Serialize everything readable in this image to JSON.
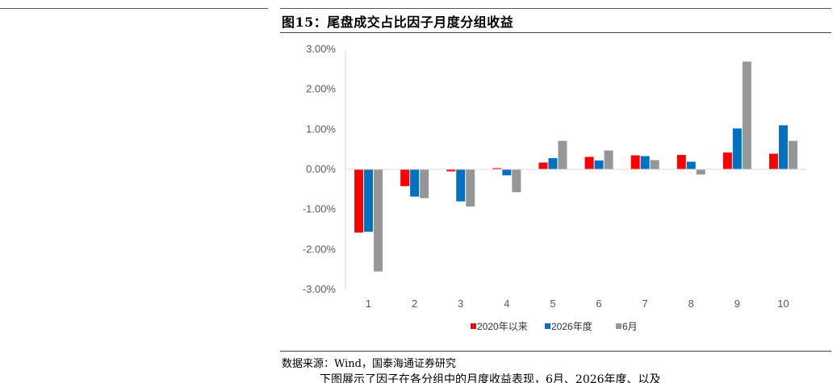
{
  "figure": {
    "title": "图15：尾盘成交占比因子月度分组收益",
    "source": "数据来源：Wind，国泰海通证券研究",
    "body_text": "下图展示了因子在各分组中的月度收益表现，6月、2026年度、以及"
  },
  "colors": {
    "series1": "#ff0000",
    "series2": "#0070c0",
    "series3": "#969696",
    "axis": "#d9d9d9"
  },
  "chart_data": {
    "type": "bar",
    "categories": [
      "1",
      "2",
      "3",
      "4",
      "5",
      "6",
      "7",
      "8",
      "9",
      "10"
    ],
    "series": [
      {
        "name": "2020年以来",
        "values": [
          -1.58,
          -0.42,
          -0.05,
          0.03,
          0.17,
          0.31,
          0.35,
          0.36,
          0.42,
          0.39
        ]
      },
      {
        "name": "2026年度",
        "values": [
          -1.56,
          -0.68,
          -0.8,
          -0.15,
          0.28,
          0.22,
          0.33,
          0.19,
          1.02,
          1.1
        ]
      },
      {
        "name": "6月",
        "values": [
          -2.55,
          -0.72,
          -0.93,
          -0.57,
          0.71,
          0.47,
          0.23,
          -0.13,
          2.69,
          0.71
        ]
      }
    ],
    "title": "",
    "xlabel": "",
    "ylabel": "",
    "ylim": [
      -3.0,
      3.0
    ],
    "yticks": [
      3.0,
      2.0,
      1.0,
      0.0,
      -1.0,
      -2.0,
      -3.0
    ],
    "ytick_labels": [
      "3.00%",
      "2.00%",
      "1.00%",
      "0.00%",
      "-1.00%",
      "-2.00%",
      "-3.00%"
    ],
    "grid": false,
    "legend_position": "bottom"
  }
}
